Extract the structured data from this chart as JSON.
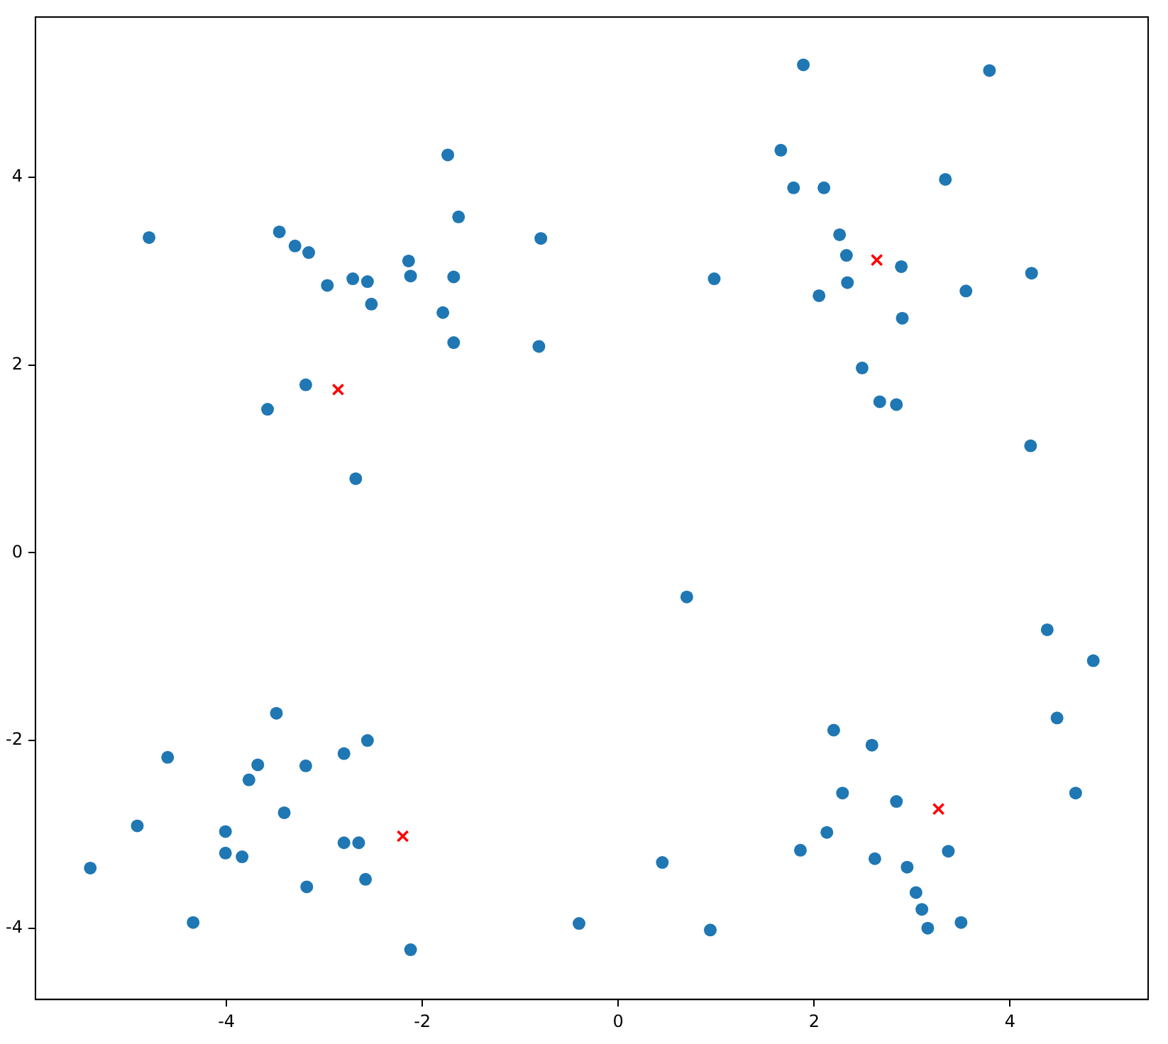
{
  "chart_data": {
    "type": "scatter",
    "xlim": [
      -5.95,
      5.41
    ],
    "ylim": [
      -4.76,
      5.71
    ],
    "xticks": [
      -4,
      -2,
      0,
      2,
      4
    ],
    "yticks": [
      -4,
      -2,
      0,
      2,
      4
    ],
    "grid": false,
    "legend": false,
    "series": [
      {
        "color": "#1f77b4",
        "marker": "circle",
        "x": [
          -4.79,
          -3.46,
          -3.3,
          -3.16,
          -2.97,
          -2.71,
          -2.56,
          -2.52,
          -2.14,
          -2.12,
          -1.74,
          -1.63,
          -1.68,
          -1.79,
          -1.68,
          -0.79,
          -0.81,
          -3.19,
          -3.58,
          -2.68,
          1.89,
          3.79,
          1.66,
          1.79,
          2.1,
          3.34,
          0.98,
          2.26,
          2.33,
          2.34,
          2.05,
          2.89,
          2.9,
          3.55,
          4.22,
          2.49,
          2.67,
          2.84,
          4.21,
          0.7,
          4.38,
          4.85,
          4.48,
          4.67,
          2.2,
          2.59,
          2.29,
          2.84,
          2.13,
          1.86,
          2.62,
          2.95,
          3.37,
          3.04,
          3.1,
          3.16,
          3.5,
          0.45,
          0.94,
          -0.4,
          -3.49,
          -4.6,
          -3.68,
          -3.77,
          -2.56,
          -2.8,
          -3.19,
          -3.41,
          -4.91,
          -4.01,
          -4.01,
          -3.84,
          -2.8,
          -2.65,
          -5.39,
          -3.18,
          -2.58,
          -4.34,
          -2.12
        ],
        "values": [
          3.36,
          3.42,
          3.27,
          3.2,
          2.85,
          2.92,
          2.89,
          2.65,
          3.11,
          2.95,
          4.24,
          3.58,
          2.94,
          2.56,
          2.24,
          3.35,
          2.2,
          1.79,
          1.53,
          0.79,
          5.2,
          5.14,
          4.29,
          3.89,
          3.89,
          3.98,
          2.92,
          3.39,
          3.17,
          2.88,
          2.74,
          3.05,
          2.5,
          2.79,
          2.98,
          1.97,
          1.61,
          1.58,
          1.14,
          -0.47,
          -0.82,
          -1.15,
          -1.76,
          -2.56,
          -1.89,
          -2.05,
          -2.56,
          -2.65,
          -2.98,
          -3.17,
          -3.26,
          -3.35,
          -3.18,
          -3.62,
          -3.8,
          -4.0,
          -3.94,
          -3.3,
          -4.02,
          -3.95,
          -1.71,
          -2.18,
          -2.26,
          -2.42,
          -2.0,
          -2.14,
          -2.27,
          -2.77,
          -2.91,
          -2.97,
          -3.2,
          -3.24,
          -3.09,
          -3.09,
          -3.36,
          -3.56,
          -3.48,
          -3.94,
          -4.23
        ]
      },
      {
        "color": "#ff0000",
        "marker": "cross",
        "x": [
          -2.86,
          2.64,
          3.27,
          -2.2
        ],
        "values": [
          1.74,
          3.12,
          -2.73,
          -3.02
        ]
      }
    ]
  }
}
